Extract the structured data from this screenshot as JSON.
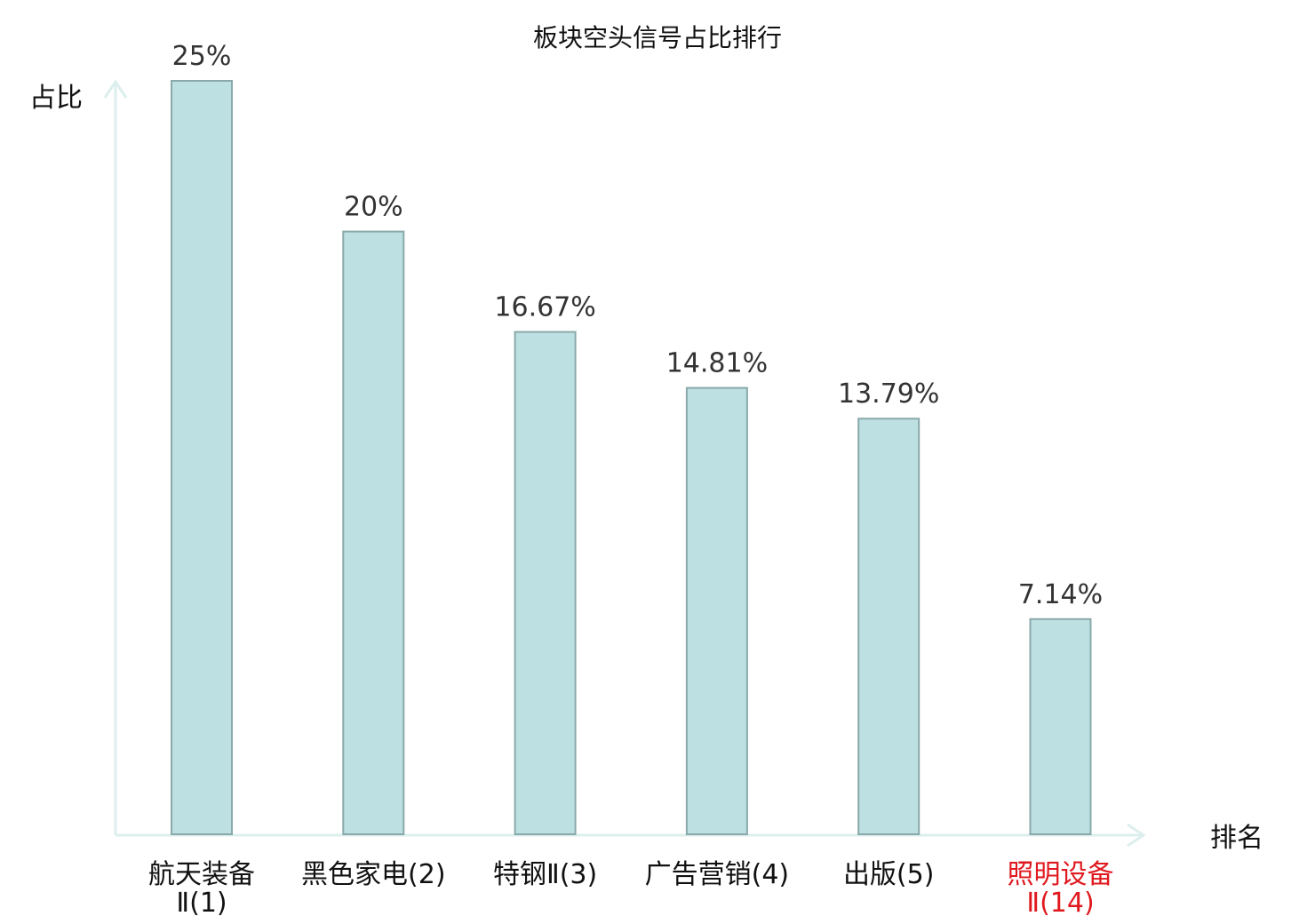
{
  "chart_data": {
    "type": "bar",
    "title": "板块空头信号占比排行",
    "ylabel": "占比",
    "xlabel": "排名",
    "categories": [
      {
        "lines": [
          "航天装备",
          "Ⅱ(1)"
        ],
        "highlight": false
      },
      {
        "lines": [
          "黑色家电(2)"
        ],
        "highlight": false
      },
      {
        "lines": [
          "特钢Ⅱ(3)"
        ],
        "highlight": false
      },
      {
        "lines": [
          "广告营销(4)"
        ],
        "highlight": false
      },
      {
        "lines": [
          "出版(5)"
        ],
        "highlight": false
      },
      {
        "lines": [
          "照明设备",
          "Ⅱ(14)"
        ],
        "highlight": true
      }
    ],
    "values": [
      25,
      20,
      16.67,
      14.81,
      13.79,
      7.14
    ],
    "value_labels": [
      "25%",
      "20%",
      "16.67%",
      "14.81%",
      "13.79%",
      "7.14%"
    ],
    "ylim": [
      0,
      25
    ],
    "grid": false,
    "legend": "none",
    "colors": {
      "bar_fill": "#bde0e2",
      "bar_stroke": "#8aa9aa",
      "axis": "#dcefed",
      "highlight_text": "#e0191f",
      "normal_text": "#111111"
    }
  }
}
